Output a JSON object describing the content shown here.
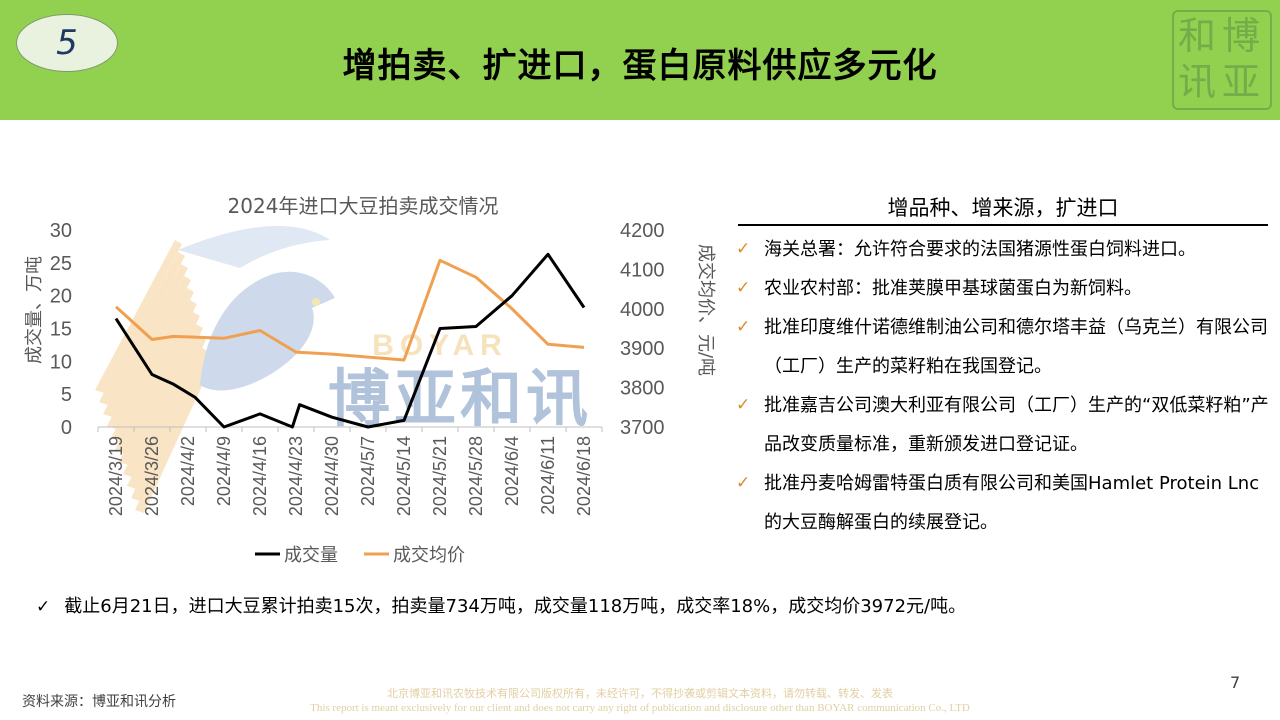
{
  "header": {
    "slide_number": "5",
    "title": "增拍卖、扩进口，蛋白原料供应多元化",
    "seal_text": "博亚和讯"
  },
  "chart_data": {
    "type": "line",
    "title": "2024年进口大豆拍卖成交情况",
    "categories": [
      "2024/3/19",
      "2024/3/26",
      "2024/4/2",
      "2024/4/9",
      "2024/4/16",
      "2024/4/23",
      "2024/4/30",
      "2024/5/7",
      "2024/5/14",
      "2024/5/21",
      "2024/5/28",
      "2024/6/4",
      "2024/6/11",
      "2024/6/18"
    ],
    "x": [
      0,
      1,
      1.6,
      2.2,
      3,
      4,
      4.9,
      5.1,
      6,
      7,
      8,
      9,
      10,
      11,
      12,
      13
    ],
    "ylabel": "成交量、万吨",
    "y2label": "成交均价、元/吨",
    "ylim": [
      0,
      30
    ],
    "y2lim": [
      3700,
      4200
    ],
    "yticks": [
      "0",
      "5",
      "10",
      "15",
      "20",
      "25",
      "30"
    ],
    "y2ticks": [
      "3700",
      "3800",
      "3900",
      "4000",
      "4100",
      "4200"
    ],
    "series": [
      {
        "name": "成交量",
        "axis": "left",
        "color": "#000000",
        "x": [
          0,
          1,
          1.6,
          2.2,
          3,
          4,
          4.9,
          5.1,
          6,
          7,
          8,
          9,
          10,
          11,
          12,
          13
        ],
        "values": [
          16.5,
          8,
          6.5,
          4.5,
          0,
          2,
          0,
          3.4,
          1.5,
          0,
          1,
          15,
          15.3,
          20,
          26.3,
          18.2
        ]
      },
      {
        "name": "成交均价",
        "axis": "right",
        "color": "#f0a050",
        "x": [
          0,
          1,
          1.6,
          3,
          4,
          5,
          6,
          8,
          9,
          10,
          11,
          12,
          13
        ],
        "values": [
          4005,
          3922,
          3930,
          3925,
          3945,
          3890,
          3885,
          3870,
          4123,
          4080,
          4000,
          3910,
          3902
        ]
      }
    ],
    "legend_position": "bottom",
    "watermark": "BOYAR 博亚和讯"
  },
  "right_panel": {
    "heading": "增品种、增来源，扩进口",
    "check_glyph": "✓",
    "bullets": [
      "海关总署：允许符合要求的法国猪源性蛋白饲料进口。",
      "农业农村部：批准荚膜甲基球菌蛋白为新饲料。",
      "批准印度维什诺德维制油公司和德尔塔丰益（乌克兰）有限公司（工厂）生产的菜籽粕在我国登记。",
      "批准嘉吉公司澳大利亚有限公司（工厂）生产的“双低菜籽粕”产品改变质量标准，重新颁发进口登记证。",
      "批准丹麦哈姆雷特蛋白质有限公司和美国Hamlet Protein Lnc的大豆酶解蛋白的续展登记。"
    ]
  },
  "summary": "截止6月21日，进口大豆累计拍卖15次，拍卖量734万吨，成交量118万吨，成交率18%，成交均价3972元/吨。",
  "footer": {
    "source": "资料来源：博亚和讯分析",
    "page_number": "7",
    "copyright_cn": "北京博亚和讯农牧技术有限公司版权所有，未经许可，不得抄袭或剪辑文本资料，请勿转载、转发、发表",
    "copyright_en": "This report is meant exclusively for our client and does not carry any right of publication and disclosure other than BOYAR communication Co., LTD"
  }
}
